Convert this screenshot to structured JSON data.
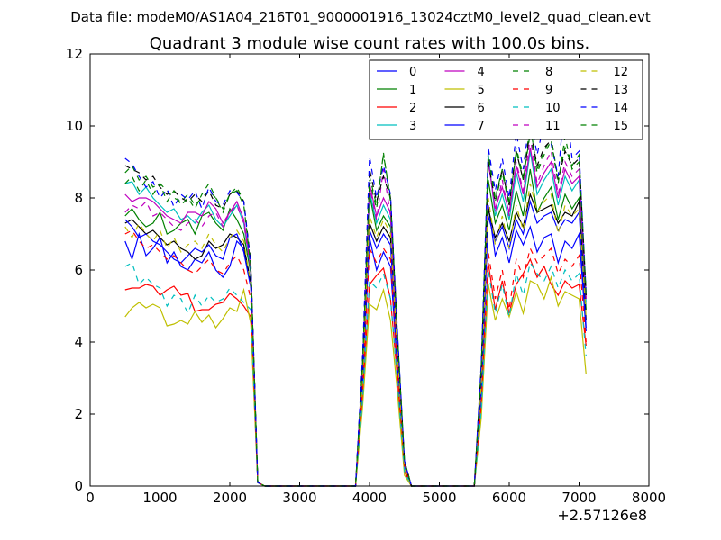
{
  "header": {
    "file_line": "Data file: modeM0/AS1A04_216T01_9000001916_13024cztM0_level2_quad_clean.evt"
  },
  "chart_data": {
    "type": "line",
    "title": "Quadrant 3 module wise count rates with 100.0s bins.",
    "xlabel": "",
    "ylabel": "",
    "x_offset_label": "+2.57126e8",
    "xlim": [
      0,
      8000
    ],
    "ylim": [
      0,
      12
    ],
    "x_ticks": [
      0,
      1000,
      2000,
      3000,
      4000,
      5000,
      6000,
      7000,
      8000
    ],
    "y_ticks": [
      0,
      2,
      4,
      6,
      8,
      10,
      12
    ],
    "grid": false,
    "legend_position": "top-right",
    "legend_columns": 4,
    "x": [
      500,
      600,
      700,
      800,
      900,
      1000,
      1100,
      1200,
      1300,
      1400,
      1500,
      1600,
      1700,
      1800,
      1900,
      2000,
      2100,
      2200,
      2300,
      2400,
      2500,
      2600,
      2700,
      2800,
      2900,
      3000,
      3100,
      3200,
      3300,
      3400,
      3500,
      3600,
      3700,
      3800,
      3900,
      4000,
      4100,
      4200,
      4300,
      4400,
      4500,
      4600,
      4700,
      4800,
      4900,
      5000,
      5100,
      5200,
      5300,
      5400,
      5500,
      5600,
      5700,
      5800,
      5900,
      6000,
      6100,
      6200,
      6300,
      6400,
      6500,
      6600,
      6700,
      6800,
      6900,
      7000,
      7100
    ],
    "series": [
      {
        "name": "0",
        "color": "#0000ff",
        "dash": "solid",
        "values": [
          6.8,
          6.3,
          7.0,
          6.4,
          6.6,
          6.9,
          6.2,
          6.5,
          6.1,
          6.0,
          6.3,
          6.2,
          6.5,
          6.0,
          5.8,
          6.1,
          6.8,
          6.6,
          5.7,
          0.1,
          0,
          0,
          0,
          0,
          0,
          0,
          0,
          0,
          0,
          0,
          0,
          0,
          0,
          0,
          2.8,
          6.9,
          6.0,
          6.5,
          6.1,
          3.2,
          0.5,
          0,
          0,
          0,
          0,
          0,
          0,
          0,
          0,
          0,
          0,
          2.5,
          7.8,
          6.4,
          6.9,
          6.2,
          7.1,
          6.7,
          7.2,
          6.5,
          6.9,
          7.0,
          6.2,
          6.8,
          6.6,
          7.0,
          4.3
        ]
      },
      {
        "name": "1",
        "color": "#008000",
        "dash": "solid",
        "values": [
          7.5,
          7.7,
          7.4,
          7.2,
          7.3,
          7.6,
          7.0,
          7.1,
          7.3,
          7.4,
          7.0,
          7.5,
          7.6,
          7.3,
          7.1,
          7.7,
          7.4,
          7.0,
          5.9,
          0.1,
          0,
          0,
          0,
          0,
          0,
          0,
          0,
          0,
          0,
          0,
          0,
          0,
          0,
          0,
          3.2,
          8.1,
          7.1,
          7.5,
          7.2,
          3.8,
          0.6,
          0,
          0,
          0,
          0,
          0,
          0,
          0,
          0,
          0,
          0,
          2.9,
          8.5,
          7.3,
          7.8,
          7.1,
          8.2,
          7.5,
          8.8,
          7.6,
          8.0,
          8.3,
          7.4,
          8.1,
          7.7,
          8.0,
          4.9
        ]
      },
      {
        "name": "2",
        "color": "#ff0000",
        "dash": "solid",
        "values": [
          5.45,
          5.5,
          5.5,
          5.6,
          5.55,
          5.3,
          5.45,
          5.55,
          5.3,
          5.35,
          4.85,
          4.9,
          4.9,
          5.05,
          5.1,
          5.35,
          5.2,
          5.0,
          4.7,
          0.1,
          0,
          0,
          0,
          0,
          0,
          0,
          0,
          0,
          0,
          0,
          0,
          0,
          0,
          0,
          2.5,
          5.6,
          5.85,
          6.05,
          5.2,
          3.0,
          0.4,
          0,
          0,
          0,
          0,
          0,
          0,
          0,
          0,
          0,
          0,
          2.2,
          6.2,
          4.9,
          5.7,
          4.8,
          5.6,
          5.9,
          6.3,
          5.8,
          6.1,
          5.6,
          5.3,
          5.7,
          5.5,
          5.6,
          3.9
        ]
      },
      {
        "name": "3",
        "color": "#00bfbf",
        "dash": "solid",
        "values": [
          8.4,
          8.45,
          8.1,
          8.3,
          8.0,
          7.8,
          7.6,
          7.7,
          7.4,
          7.5,
          7.3,
          7.6,
          7.8,
          7.4,
          7.2,
          7.5,
          7.8,
          7.3,
          6.0,
          0.1,
          0,
          0,
          0,
          0,
          0,
          0,
          0,
          0,
          0,
          0,
          0,
          0,
          0,
          0,
          3.3,
          8.2,
          7.3,
          7.8,
          7.4,
          3.9,
          0.6,
          0,
          0,
          0,
          0,
          0,
          0,
          0,
          0,
          0,
          0,
          3.0,
          9.2,
          7.5,
          8.1,
          7.4,
          8.7,
          7.9,
          9.3,
          8.1,
          8.5,
          8.8,
          7.8,
          8.6,
          8.2,
          8.5,
          5.1
        ]
      },
      {
        "name": "4",
        "color": "#bf00bf",
        "dash": "solid",
        "values": [
          8.1,
          7.9,
          8.0,
          8.0,
          7.9,
          7.7,
          7.5,
          7.4,
          7.3,
          7.6,
          7.6,
          7.5,
          7.9,
          7.7,
          7.3,
          7.6,
          7.9,
          7.4,
          6.1,
          0.1,
          0,
          0,
          0,
          0,
          0,
          0,
          0,
          0,
          0,
          0,
          0,
          0,
          0,
          0,
          3.4,
          8.4,
          7.5,
          8.0,
          7.6,
          4.0,
          0.6,
          0,
          0,
          0,
          0,
          0,
          0,
          0,
          0,
          0,
          0,
          3.1,
          9.0,
          7.7,
          8.3,
          7.6,
          8.9,
          8.1,
          9.4,
          8.3,
          8.7,
          9.0,
          8.0,
          8.8,
          8.4,
          8.6,
          5.2
        ]
      },
      {
        "name": "5",
        "color": "#bfbf00",
        "dash": "solid",
        "values": [
          4.7,
          4.95,
          5.1,
          4.95,
          5.05,
          4.95,
          4.45,
          4.5,
          4.6,
          4.5,
          4.85,
          4.55,
          4.75,
          4.4,
          4.65,
          4.95,
          4.85,
          5.45,
          4.5,
          0.1,
          0,
          0,
          0,
          0,
          0,
          0,
          0,
          0,
          0,
          0,
          0,
          0,
          0,
          0,
          2.2,
          5.05,
          4.9,
          5.45,
          4.6,
          2.6,
          0.3,
          0,
          0,
          0,
          0,
          0,
          0,
          0,
          0,
          0,
          0,
          1.9,
          5.6,
          4.6,
          5.2,
          4.7,
          5.4,
          4.8,
          5.7,
          5.6,
          5.2,
          5.8,
          5.0,
          5.4,
          5.3,
          5.2,
          3.1
        ]
      },
      {
        "name": "6",
        "color": "#000000",
        "dash": "solid",
        "values": [
          7.3,
          7.4,
          7.2,
          7.0,
          7.1,
          6.9,
          6.7,
          6.8,
          6.6,
          6.5,
          6.3,
          6.4,
          6.8,
          6.6,
          6.7,
          7.0,
          6.9,
          6.7,
          5.6,
          0.1,
          0,
          0,
          0,
          0,
          0,
          0,
          0,
          0,
          0,
          0,
          0,
          0,
          0,
          0,
          3.0,
          7.3,
          6.8,
          7.2,
          6.9,
          3.6,
          0.5,
          0,
          0,
          0,
          0,
          0,
          0,
          0,
          0,
          0,
          0,
          2.7,
          7.7,
          6.9,
          7.3,
          6.8,
          7.6,
          7.2,
          8.1,
          7.6,
          7.7,
          7.8,
          7.3,
          7.6,
          7.5,
          7.9,
          4.6
        ]
      },
      {
        "name": "7",
        "color": "#0000ff",
        "dash": "solid",
        "values": [
          7.4,
          7.2,
          6.9,
          7.0,
          6.8,
          6.7,
          6.5,
          6.3,
          6.2,
          6.4,
          6.6,
          6.5,
          6.7,
          6.4,
          6.3,
          6.9,
          7.0,
          6.5,
          5.5,
          0.1,
          0,
          0,
          0,
          0,
          0,
          0,
          0,
          0,
          0,
          0,
          0,
          0,
          0,
          0,
          2.9,
          7.1,
          6.6,
          7.0,
          6.7,
          3.5,
          0.5,
          0,
          0,
          0,
          0,
          0,
          0,
          0,
          0,
          0,
          0,
          2.6,
          7.5,
          6.8,
          7.2,
          6.6,
          7.4,
          7.0,
          7.9,
          7.3,
          7.5,
          7.6,
          7.1,
          7.4,
          7.3,
          7.6,
          4.4
        ]
      },
      {
        "name": "8",
        "color": "#008000",
        "dash": "dashed",
        "values": [
          8.7,
          8.9,
          8.5,
          8.6,
          8.3,
          8.4,
          8.2,
          8.0,
          7.9,
          8.1,
          7.8,
          8.0,
          8.2,
          8.0,
          7.6,
          8.1,
          8.3,
          7.9,
          6.2,
          0.1,
          0,
          0,
          0,
          0,
          0,
          0,
          0,
          0,
          0,
          0,
          0,
          0,
          0,
          0,
          3.5,
          8.6,
          7.8,
          9.2,
          8.0,
          4.2,
          0.7,
          0,
          0,
          0,
          0,
          0,
          0,
          0,
          0,
          0,
          0,
          3.3,
          9.3,
          8.0,
          8.8,
          7.9,
          9.4,
          8.6,
          10.0,
          8.8,
          9.3,
          9.7,
          8.5,
          9.4,
          8.9,
          9.2,
          5.4
        ]
      },
      {
        "name": "9",
        "color": "#ff0000",
        "dash": "dashed",
        "values": [
          7.0,
          7.1,
          6.8,
          6.6,
          6.7,
          6.5,
          6.3,
          6.4,
          6.2,
          6.0,
          5.9,
          6.1,
          6.3,
          6.0,
          5.9,
          6.2,
          6.4,
          6.0,
          5.2,
          0.1,
          0,
          0,
          0,
          0,
          0,
          0,
          0,
          0,
          0,
          0,
          0,
          0,
          0,
          0,
          2.7,
          6.6,
          6.2,
          6.6,
          6.3,
          3.3,
          0.5,
          0,
          0,
          0,
          0,
          0,
          0,
          0,
          0,
          0,
          0,
          2.3,
          6.5,
          5.2,
          6.0,
          4.9,
          6.3,
          5.8,
          6.6,
          6.2,
          6.4,
          6.6,
          5.9,
          6.3,
          6.1,
          6.4,
          4.0
        ]
      },
      {
        "name": "10",
        "color": "#00bfbf",
        "dash": "dashed",
        "values": [
          6.1,
          6.2,
          5.6,
          5.8,
          5.6,
          5.5,
          5.0,
          5.3,
          5.2,
          4.8,
          5.3,
          5.0,
          5.3,
          5.1,
          5.2,
          5.5,
          5.3,
          5.1,
          4.9,
          0.1,
          0,
          0,
          0,
          0,
          0,
          0,
          0,
          0,
          0,
          0,
          0,
          0,
          0,
          0,
          2.4,
          5.7,
          5.5,
          5.9,
          5.2,
          2.9,
          0.4,
          0,
          0,
          0,
          0,
          0,
          0,
          0,
          0,
          0,
          0,
          2.1,
          6.0,
          4.8,
          5.6,
          4.7,
          5.9,
          5.3,
          6.2,
          5.9,
          5.7,
          6.1,
          5.5,
          6.0,
          5.7,
          5.9,
          3.6
        ]
      },
      {
        "name": "11",
        "color": "#bf00bf",
        "dash": "dashed",
        "values": [
          7.6,
          7.8,
          7.7,
          7.9,
          7.5,
          7.6,
          7.4,
          7.2,
          7.1,
          7.3,
          7.4,
          7.2,
          7.5,
          7.6,
          7.2,
          7.6,
          7.8,
          7.3,
          6.0,
          0.1,
          0,
          0,
          0,
          0,
          0,
          0,
          0,
          0,
          0,
          0,
          0,
          0,
          0,
          0,
          3.3,
          8.3,
          7.4,
          8.8,
          7.5,
          3.9,
          0.6,
          0,
          0,
          0,
          0,
          0,
          0,
          0,
          0,
          0,
          0,
          3.0,
          9.1,
          7.6,
          8.5,
          7.5,
          9.0,
          8.2,
          9.7,
          8.4,
          8.9,
          9.3,
          8.1,
          9.0,
          8.6,
          8.8,
          5.2
        ]
      },
      {
        "name": "12",
        "color": "#bfbf00",
        "dash": "dashed",
        "values": [
          7.2,
          6.9,
          7.3,
          7.0,
          6.8,
          7.1,
          6.6,
          6.9,
          6.5,
          6.7,
          6.8,
          6.6,
          7.0,
          6.7,
          6.5,
          6.9,
          7.1,
          6.8,
          5.6,
          0.1,
          0,
          0,
          0,
          0,
          0,
          0,
          0,
          0,
          0,
          0,
          0,
          0,
          0,
          0,
          3.0,
          7.5,
          6.9,
          7.4,
          7.0,
          3.7,
          0.5,
          0,
          0,
          0,
          0,
          0,
          0,
          0,
          0,
          0,
          0,
          2.8,
          8.0,
          6.7,
          7.5,
          6.6,
          7.8,
          7.1,
          8.4,
          7.6,
          7.9,
          8.1,
          7.0,
          7.8,
          7.5,
          7.7,
          4.7
        ]
      },
      {
        "name": "13",
        "color": "#000000",
        "dash": "dashed",
        "values": [
          8.9,
          8.8,
          8.7,
          8.5,
          8.6,
          8.3,
          8.1,
          8.2,
          8.0,
          7.9,
          8.1,
          7.9,
          8.2,
          7.8,
          7.7,
          8.1,
          8.2,
          7.9,
          6.2,
          0.1,
          0,
          0,
          0,
          0,
          0,
          0,
          0,
          0,
          0,
          0,
          0,
          0,
          0,
          0,
          3.5,
          8.8,
          7.9,
          8.6,
          8.0,
          4.2,
          0.7,
          0,
          0,
          0,
          0,
          0,
          0,
          0,
          0,
          0,
          0,
          3.3,
          9.0,
          7.9,
          8.8,
          7.8,
          9.3,
          8.5,
          9.9,
          8.9,
          9.4,
          9.6,
          8.5,
          9.3,
          8.9,
          9.1,
          5.3
        ]
      },
      {
        "name": "14",
        "color": "#0000ff",
        "dash": "dashed",
        "values": [
          9.1,
          8.95,
          8.6,
          8.3,
          8.45,
          8.0,
          8.25,
          7.75,
          8.1,
          7.95,
          8.2,
          7.7,
          8.3,
          7.9,
          7.8,
          8.2,
          8.15,
          7.9,
          6.1,
          0.1,
          0,
          0,
          0,
          0,
          0,
          0,
          0,
          0,
          0,
          0,
          0,
          0,
          0,
          0,
          3.6,
          9.15,
          8.0,
          8.9,
          8.1,
          4.3,
          0.7,
          0,
          0,
          0,
          0,
          0,
          0,
          0,
          0,
          0,
          0,
          3.4,
          9.4,
          8.2,
          9.1,
          8.0,
          9.8,
          8.8,
          10.3,
          9.2,
          10.1,
          9.5,
          8.6,
          10.85,
          9.1,
          9.3,
          5.4
        ]
      },
      {
        "name": "15",
        "color": "#008000",
        "dash": "dashed",
        "values": [
          8.4,
          8.6,
          8.2,
          8.5,
          8.1,
          8.4,
          7.9,
          8.2,
          7.8,
          8.0,
          7.7,
          8.1,
          8.4,
          8.0,
          7.7,
          8.1,
          8.2,
          7.8,
          6.1,
          0.1,
          0,
          0,
          0,
          0,
          0,
          0,
          0,
          0,
          0,
          0,
          0,
          0,
          0,
          0,
          3.4,
          8.5,
          7.7,
          9.25,
          7.9,
          4.1,
          0.7,
          0,
          0,
          0,
          0,
          0,
          0,
          0,
          0,
          0,
          0,
          3.2,
          9.2,
          7.9,
          8.7,
          7.8,
          9.3,
          8.5,
          9.8,
          8.7,
          9.2,
          9.6,
          8.4,
          9.7,
          8.8,
          9.0,
          5.3
        ]
      }
    ]
  }
}
